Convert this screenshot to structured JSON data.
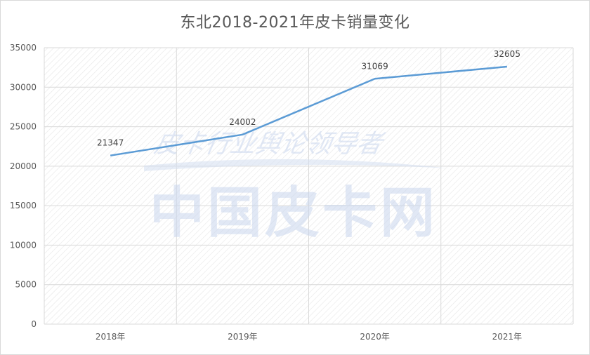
{
  "chart_data": {
    "type": "line",
    "title": "东北2018-2021年皮卡销量变化",
    "categories": [
      "2018年",
      "2019年",
      "2020年",
      "2021年"
    ],
    "series": [
      {
        "values": [
          21347,
          24002,
          31069,
          32605
        ]
      }
    ],
    "data_labels": [
      "21347",
      "24002",
      "31069",
      "32605"
    ],
    "ylim": [
      0,
      35000
    ],
    "yticks": [
      "0",
      "5000",
      "10000",
      "15000",
      "20000",
      "25000",
      "30000",
      "35000"
    ],
    "grid": true,
    "line_color": "#5b9bd5",
    "watermark_logo": "皮卡行业舆论领导者 中国皮卡网"
  }
}
